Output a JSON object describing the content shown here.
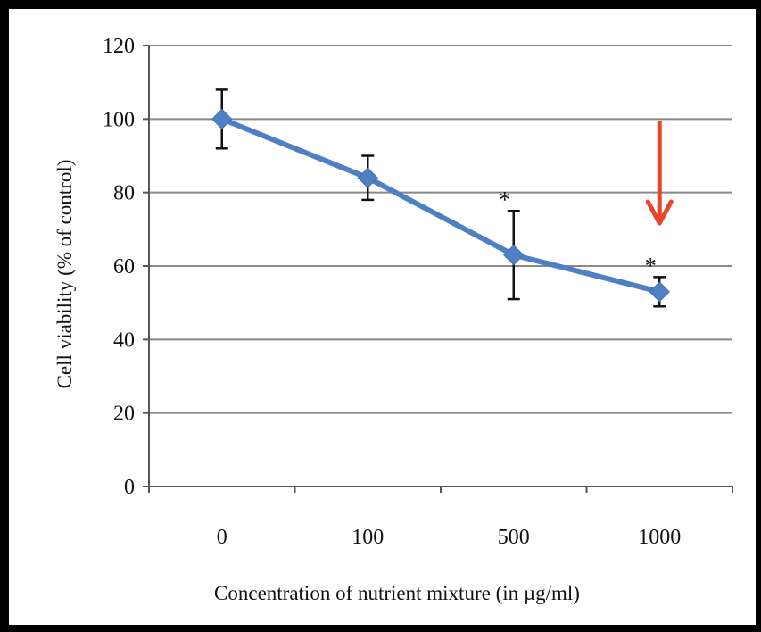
{
  "chart_data": {
    "type": "line",
    "title": "",
    "xlabel": "Concentration of nutrient mixture (in µg/ml)",
    "ylabel": "Cell viability (% of control)",
    "categories": [
      "0",
      "100",
      "500",
      "1000"
    ],
    "series": [
      {
        "values": [
          100,
          84,
          63,
          53
        ],
        "error": [
          8,
          6,
          12,
          4
        ],
        "significance": [
          "",
          "",
          "*",
          "*"
        ]
      }
    ],
    "ylim": [
      0,
      120
    ],
    "yticks": [
      0,
      20,
      40,
      60,
      80,
      100,
      120
    ],
    "grid": true,
    "legend": "none",
    "annotation": {
      "type": "arrow",
      "points_to_category": "1000",
      "color": "#e8452c"
    },
    "colors": {
      "series": "#4f7fc4",
      "grid": "#888888",
      "axis": "#555555",
      "text": "#111111"
    }
  }
}
